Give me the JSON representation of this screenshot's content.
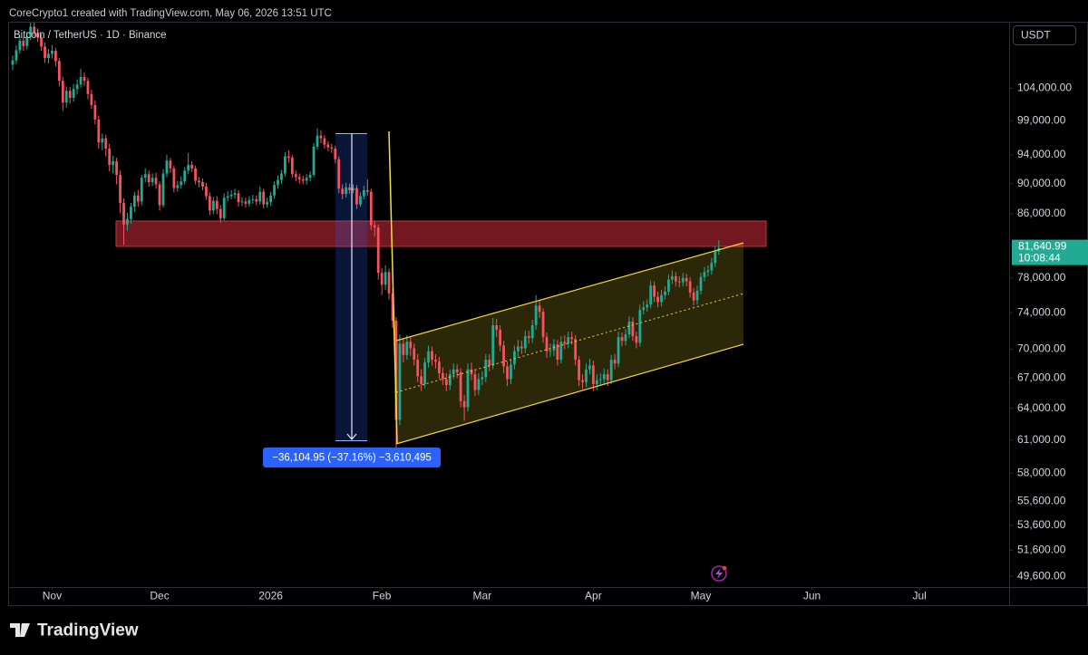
{
  "header": "CoreCrypto1 created with TradingView.com, May 06, 2026 13:51 UTC",
  "footer": {
    "brand": "TradingView"
  },
  "chart_data": {
    "type": "candlestick",
    "title": "Bitcoin / TetherUS · 1D · Binance",
    "currency": "USDT",
    "log_scale": true,
    "grid": false,
    "up_color": "#22ab94",
    "down_color": "#f7525f",
    "xlim": [
      -1,
      278
    ],
    "xticks": [
      {
        "value": 11,
        "label": "Nov"
      },
      {
        "value": 41,
        "label": "Dec"
      },
      {
        "value": 72,
        "label": "2026"
      },
      {
        "value": 103,
        "label": "Feb"
      },
      {
        "value": 131,
        "label": "Mar"
      },
      {
        "value": 162,
        "label": "Apr"
      },
      {
        "value": 192,
        "label": "May"
      },
      {
        "value": 223,
        "label": "Jun"
      },
      {
        "value": 253,
        "label": "Jul"
      }
    ],
    "ylim": [
      48800,
      114900
    ],
    "yticks": [
      {
        "value": 104000,
        "label": "104,000.00"
      },
      {
        "value": 99000,
        "label": "99,000.00"
      },
      {
        "value": 94000,
        "label": "94,000.00"
      },
      {
        "value": 90000,
        "label": "90,000.00"
      },
      {
        "value": 86000,
        "label": "86,000.00"
      },
      {
        "value": 78000,
        "label": "78,000.00"
      },
      {
        "value": 74000,
        "label": "74,000.00"
      },
      {
        "value": 70000,
        "label": "70,000.00"
      },
      {
        "value": 67000,
        "label": "67,000.00"
      },
      {
        "value": 64000,
        "label": "64,000.00"
      },
      {
        "value": 61000,
        "label": "61,000.00"
      },
      {
        "value": 58000,
        "label": "58,000.00"
      },
      {
        "value": 55600,
        "label": "55,600.00"
      },
      {
        "value": 53600,
        "label": "53,600.00"
      },
      {
        "value": 51600,
        "label": "51,600.00"
      },
      {
        "value": 49600,
        "label": "49,600.00"
      }
    ],
    "open": [
      107800,
      108500,
      110200,
      111800,
      110900,
      112500,
      114200,
      113100,
      112400,
      110800,
      108900,
      109600,
      110100,
      108400,
      105200,
      101800,
      103600,
      102500,
      103900,
      104600,
      105800,
      105200,
      103100,
      101400,
      99200,
      95800,
      96400,
      94900,
      92600,
      93100,
      91200,
      87400,
      84600,
      85300,
      86900,
      88400,
      87600,
      90800,
      91300,
      90200,
      90800,
      89900,
      87100,
      91400,
      93200,
      92100,
      89400,
      89800,
      90300,
      91800,
      92600,
      92100,
      90400,
      90200,
      89600,
      88300,
      86400,
      87700,
      86600,
      85400,
      88100,
      88300,
      88500,
      88700,
      87500,
      87600,
      87300,
      87800,
      87900,
      87600,
      88900,
      87200,
      87500,
      88400,
      89800,
      90500,
      91400,
      93800,
      93600,
      91300,
      90900,
      90600,
      90400,
      90800,
      91200,
      95200,
      96800,
      96400,
      95500,
      95100,
      94900,
      93400,
      89300,
      88600,
      89500,
      89100,
      89400,
      87200,
      88300,
      89100,
      88900,
      84500,
      84200,
      78600,
      77200,
      78700,
      76200,
      73100,
      62900,
      70600,
      69400,
      70800,
      70100,
      68900,
      67200,
      66400,
      68600,
      69800,
      68900,
      68700,
      67500,
      66900,
      66300,
      67400,
      67900,
      67600,
      64700,
      64100,
      67900,
      67400,
      65800,
      66900,
      67100,
      68900,
      68300,
      72600,
      72100,
      70400,
      68200,
      66900,
      68400,
      69800,
      70300,
      70100,
      71400,
      71200,
      72600,
      74800,
      74100,
      71300,
      69800,
      69900,
      70500,
      68900,
      70800,
      70600,
      71300,
      71100,
      68900,
      66800,
      66600,
      67900,
      68300,
      66400,
      66800,
      66900,
      67400,
      66800,
      68900,
      68500,
      71300,
      70900,
      71600,
      73000,
      71400,
      70700,
      74300,
      74600,
      74900,
      77100,
      75800,
      75200,
      76000,
      76400,
      77800,
      78200,
      77600,
      77500,
      78000,
      77600,
      76300,
      75400,
      76500,
      78100,
      78700,
      78900,
      79800,
      81200
    ],
    "high": [
      109300,
      111000,
      112600,
      112400,
      113300,
      115000,
      115500,
      113900,
      113000,
      111500,
      110400,
      111100,
      110600,
      108900,
      105800,
      104300,
      104200,
      104700,
      105400,
      107100,
      106500,
      105700,
      103800,
      102100,
      99800,
      97100,
      96900,
      95600,
      93900,
      93600,
      91800,
      88000,
      86100,
      87400,
      88900,
      89100,
      91200,
      92100,
      91800,
      91400,
      91500,
      90300,
      92000,
      94000,
      93600,
      92500,
      90400,
      91000,
      92300,
      94300,
      93100,
      92500,
      90900,
      90700,
      90100,
      88800,
      88200,
      88300,
      87100,
      88700,
      89000,
      89100,
      89300,
      89100,
      88200,
      88100,
      88300,
      88500,
      88400,
      89600,
      89300,
      88100,
      88900,
      90300,
      91100,
      91900,
      94400,
      94700,
      94000,
      91800,
      91400,
      91100,
      91300,
      91700,
      95700,
      97900,
      97600,
      96900,
      96000,
      95600,
      95300,
      93800,
      89900,
      90100,
      90000,
      89900,
      89800,
      88800,
      89700,
      90600,
      89300,
      85100,
      84600,
      79200,
      79500,
      79100,
      76800,
      73500,
      71600,
      71200,
      71500,
      71400,
      70600,
      69500,
      67900,
      69100,
      70400,
      70300,
      69500,
      69200,
      68100,
      67500,
      67900,
      68500,
      68400,
      68000,
      65300,
      68500,
      68600,
      67900,
      67500,
      67700,
      69500,
      69500,
      73400,
      73300,
      72600,
      70900,
      68700,
      68900,
      70400,
      71000,
      70900,
      72000,
      72000,
      73200,
      76000,
      75400,
      74500,
      71800,
      70600,
      71100,
      71000,
      71400,
      71500,
      71900,
      71900,
      71500,
      69300,
      67400,
      68500,
      69000,
      68800,
      67400,
      67500,
      68000,
      67900,
      69400,
      69500,
      71900,
      71800,
      72200,
      73600,
      73500,
      71900,
      74900,
      75300,
      75500,
      77700,
      77600,
      76400,
      76600,
      77000,
      78400,
      78900,
      78700,
      78200,
      78600,
      78500,
      78100,
      76800,
      77100,
      78600,
      79300,
      79500,
      80400,
      81800,
      82600
    ],
    "low": [
      106900,
      107900,
      109600,
      110100,
      110300,
      111900,
      112500,
      111600,
      110100,
      108100,
      108000,
      108800,
      107500,
      104300,
      100500,
      101000,
      101600,
      101900,
      103100,
      104100,
      104400,
      102300,
      100800,
      98500,
      94900,
      94700,
      93800,
      91700,
      91400,
      89900,
      86100,
      82000,
      83800,
      84700,
      86200,
      86900,
      87100,
      90200,
      89600,
      89700,
      89300,
      86400,
      86800,
      90900,
      91500,
      88800,
      88900,
      89300,
      89900,
      91300,
      91600,
      89900,
      89500,
      89100,
      87800,
      85800,
      85900,
      85900,
      84800,
      85100,
      87600,
      87900,
      88000,
      86900,
      87000,
      86800,
      86900,
      87300,
      87100,
      87200,
      86700,
      86800,
      87000,
      88000,
      89300,
      90000,
      91000,
      92900,
      90800,
      90300,
      90000,
      89900,
      89900,
      90300,
      90900,
      94800,
      95700,
      94900,
      94500,
      94300,
      92800,
      88700,
      87900,
      88100,
      88600,
      88700,
      86600,
      86900,
      87900,
      88400,
      83900,
      83100,
      77800,
      76000,
      76600,
      75500,
      72300,
      60100,
      62400,
      68600,
      68900,
      69300,
      68300,
      66600,
      65700,
      66000,
      68100,
      68300,
      68000,
      66900,
      66300,
      65700,
      65800,
      66900,
      67000,
      64100,
      62800,
      63700,
      66800,
      65200,
      65300,
      66300,
      66600,
      67700,
      67900,
      71300,
      69800,
      67500,
      66200,
      66400,
      67900,
      69200,
      69500,
      69600,
      70600,
      70700,
      72100,
      73400,
      70700,
      69100,
      69200,
      69300,
      68300,
      68500,
      70000,
      70100,
      70500,
      68300,
      66200,
      65900,
      66100,
      67400,
      65700,
      65800,
      66200,
      66400,
      66200,
      66400,
      67900,
      68100,
      70300,
      70400,
      71200,
      70900,
      70100,
      70300,
      73800,
      74100,
      74500,
      75200,
      74600,
      74700,
      75500,
      76000,
      77300,
      77000,
      76900,
      77000,
      77000,
      75700,
      74800,
      74900,
      76100,
      77600,
      78200,
      78400,
      79300,
      80800
    ],
    "close": [
      108500,
      110200,
      111800,
      110900,
      112500,
      114200,
      113100,
      112400,
      110800,
      108900,
      109600,
      110100,
      108400,
      105200,
      101800,
      103600,
      102500,
      103900,
      104600,
      105800,
      105200,
      103100,
      101400,
      99200,
      95800,
      96400,
      94900,
      92600,
      93100,
      91200,
      87400,
      84600,
      85300,
      86900,
      88400,
      87600,
      90800,
      91300,
      90200,
      90800,
      89900,
      87100,
      91400,
      93200,
      92100,
      89400,
      89800,
      90300,
      91800,
      92600,
      92100,
      90400,
      90200,
      89600,
      88300,
      86400,
      87700,
      86600,
      85400,
      88100,
      88300,
      88500,
      88700,
      87500,
      87600,
      87300,
      87800,
      87900,
      87600,
      88900,
      87200,
      87500,
      88400,
      89800,
      90500,
      91400,
      93800,
      93600,
      91300,
      90900,
      90600,
      90400,
      90800,
      91200,
      95200,
      96800,
      96400,
      95500,
      95100,
      94900,
      93400,
      89300,
      88600,
      89500,
      89100,
      89400,
      87200,
      88300,
      89100,
      88900,
      84500,
      84200,
      78600,
      77200,
      78700,
      76200,
      73100,
      62900,
      70600,
      69400,
      70800,
      70100,
      68900,
      67200,
      66400,
      68600,
      69800,
      68900,
      68700,
      67500,
      66900,
      66300,
      67400,
      67900,
      67600,
      64700,
      64100,
      67900,
      67400,
      65800,
      66900,
      67100,
      68900,
      68300,
      72600,
      72100,
      70400,
      68200,
      66900,
      68400,
      69800,
      70300,
      70100,
      71400,
      71200,
      72600,
      74800,
      74100,
      71300,
      69800,
      69900,
      70500,
      68900,
      70800,
      70600,
      71300,
      71100,
      68900,
      66800,
      66600,
      67900,
      68300,
      66400,
      66800,
      66900,
      67400,
      66800,
      68900,
      68500,
      71300,
      70900,
      71600,
      73000,
      71400,
      70700,
      74300,
      74600,
      74900,
      77100,
      75800,
      75200,
      76000,
      76400,
      77800,
      78200,
      77600,
      77500,
      78000,
      77600,
      76300,
      75400,
      76500,
      78100,
      78700,
      78900,
      79800,
      81200,
      81640.99
    ],
    "last_price_label": "81,640.99",
    "countdown": "10:08:44",
    "measure_label": "−36,104.95 (−37.16%) −3,610,495"
  }
}
